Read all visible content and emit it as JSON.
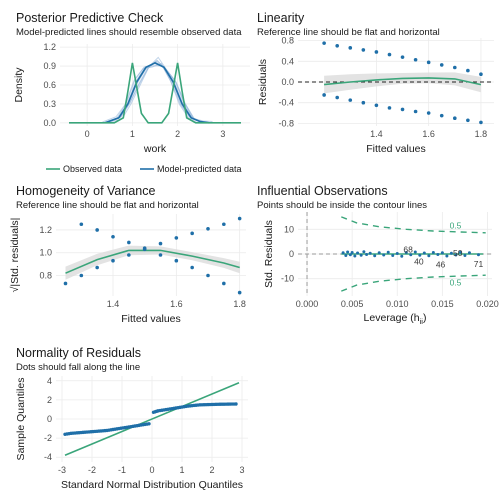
{
  "colors": {
    "blue": "#1f6fa8",
    "green": "#3aa57a",
    "band": "#dcdcdc",
    "grid": "#ebebeb",
    "blue_light": "#8fb3d9"
  },
  "chart_data": [
    {
      "id": "ppc",
      "type": "line",
      "title": "Posterior Predictive Check",
      "subtitle": "Model-predicted lines should resemble observed data",
      "xlabel": "work",
      "ylabel": "Density",
      "xlim": [
        -0.6,
        3.6
      ],
      "ylim": [
        -0.05,
        1.25
      ],
      "xticks": [
        0,
        1,
        2,
        3
      ],
      "yticks": [
        0.0,
        0.3,
        0.6,
        0.9,
        1.2
      ],
      "ytick_labels": [
        "0.0",
        "0.3",
        "0.6",
        "0.9",
        "1.2"
      ],
      "legend": [
        "Observed data",
        "Model-predicted data"
      ],
      "legend_position": "bottom",
      "series": [
        {
          "name": "Observed data",
          "x": [
            -0.4,
            0.6,
            0.8,
            0.9,
            1.0,
            1.1,
            1.2,
            1.35,
            1.5,
            1.65,
            1.8,
            1.9,
            2.0,
            2.1,
            2.2,
            2.4,
            3.4
          ],
          "y": [
            0.0,
            0.0,
            0.08,
            0.5,
            0.95,
            0.55,
            0.15,
            0.0,
            0.0,
            0.0,
            0.15,
            0.55,
            0.95,
            0.5,
            0.08,
            0.0,
            0.0
          ]
        },
        {
          "name": "Model-predicted data",
          "x": [
            0.4,
            0.7,
            0.9,
            1.1,
            1.3,
            1.5,
            1.7,
            1.9,
            2.1,
            2.3,
            2.5,
            2.7
          ],
          "y": [
            0.0,
            0.08,
            0.3,
            0.65,
            0.88,
            0.95,
            0.88,
            0.65,
            0.3,
            0.08,
            0.02,
            0.0
          ]
        }
      ]
    },
    {
      "id": "linearity",
      "type": "scatter",
      "title": "Linearity",
      "subtitle": "Reference line should be flat and horizontal",
      "xlabel": "Fitted values",
      "ylabel": "Residuals",
      "xlim": [
        1.1,
        1.85
      ],
      "ylim": [
        -0.85,
        0.85
      ],
      "xticks": [
        1.4,
        1.6,
        1.8
      ],
      "yticks": [
        -0.8,
        -0.4,
        0.0,
        0.4,
        0.8
      ],
      "ytick_labels": [
        "-0.8",
        "-0.4",
        "0.0",
        "0.4",
        "0.8"
      ],
      "upper_points": {
        "x": [
          1.2,
          1.25,
          1.3,
          1.35,
          1.4,
          1.45,
          1.5,
          1.55,
          1.6,
          1.65,
          1.7,
          1.75,
          1.8
        ],
        "y": [
          0.75,
          0.7,
          0.66,
          0.62,
          0.58,
          0.53,
          0.48,
          0.43,
          0.38,
          0.33,
          0.28,
          0.22,
          0.15
        ]
      },
      "lower_points": {
        "x": [
          1.2,
          1.25,
          1.3,
          1.35,
          1.4,
          1.45,
          1.5,
          1.55,
          1.6,
          1.65,
          1.7,
          1.75,
          1.8
        ],
        "y": [
          -0.25,
          -0.3,
          -0.35,
          -0.4,
          -0.45,
          -0.5,
          -0.53,
          -0.57,
          -0.6,
          -0.65,
          -0.7,
          -0.74,
          -0.78
        ]
      },
      "smooth": {
        "x": [
          1.2,
          1.3,
          1.4,
          1.5,
          1.6,
          1.7,
          1.8
        ],
        "y": [
          -0.05,
          0.0,
          0.04,
          0.07,
          0.08,
          0.06,
          -0.05
        ]
      },
      "reference_y": 0.0
    },
    {
      "id": "homogeneity",
      "type": "scatter",
      "title": "Homogeneity of Variance",
      "subtitle": "Reference line should be flat and horizontal",
      "xlabel": "Fitted values",
      "ylabel": "√|Std. residuals|",
      "xlim": [
        1.22,
        1.82
      ],
      "ylim": [
        0.62,
        1.34
      ],
      "xticks": [
        1.4,
        1.6,
        1.8
      ],
      "yticks": [
        0.8,
        1.0,
        1.2
      ],
      "ytick_labels": [
        "0.8",
        "1.0",
        "1.2"
      ],
      "falling_points": {
        "x": [
          1.3,
          1.35,
          1.4,
          1.45,
          1.5,
          1.55,
          1.6,
          1.65,
          1.7,
          1.75,
          1.8
        ],
        "y": [
          1.25,
          1.2,
          1.14,
          1.09,
          1.04,
          0.98,
          0.93,
          0.87,
          0.8,
          0.73,
          0.65
        ]
      },
      "rising_points": {
        "x": [
          1.25,
          1.3,
          1.35,
          1.4,
          1.45,
          1.5,
          1.55,
          1.6,
          1.65,
          1.7,
          1.75,
          1.8
        ],
        "y": [
          0.73,
          0.8,
          0.87,
          0.93,
          0.98,
          1.03,
          1.08,
          1.13,
          1.17,
          1.21,
          1.25,
          1.3
        ]
      },
      "smooth": {
        "x": [
          1.25,
          1.35,
          1.45,
          1.55,
          1.65,
          1.75,
          1.8
        ],
        "y": [
          0.82,
          0.94,
          1.02,
          1.02,
          0.97,
          0.91,
          0.87
        ]
      }
    },
    {
      "id": "influential",
      "type": "scatter",
      "title": "Influential Observations",
      "subtitle": "Points should be inside the contour lines",
      "xlabel": "Leverage (h",
      "xlabel_sub": "ii",
      "xlabel_end": ")",
      "ylabel": "Std. Residuals",
      "xlim": [
        -0.001,
        0.0205
      ],
      "ylim": [
        -17,
        17
      ],
      "xticks": [
        0.0,
        0.005,
        0.01,
        0.015,
        0.02
      ],
      "xtick_labels": [
        "0.000",
        "0.005",
        "0.010",
        "0.015",
        "0.020"
      ],
      "yticks": [
        -10,
        0,
        10
      ],
      "ytick_labels": [
        "-10",
        "0",
        "10"
      ],
      "points": {
        "x": [
          0.004,
          0.0043,
          0.0045,
          0.0048,
          0.005,
          0.0053,
          0.0056,
          0.006,
          0.0063,
          0.0066,
          0.007,
          0.0075,
          0.008,
          0.0085,
          0.009,
          0.0095,
          0.01,
          0.0105,
          0.011,
          0.0115,
          0.012,
          0.0125,
          0.013,
          0.0135,
          0.014,
          0.0145,
          0.015,
          0.0155,
          0.016,
          0.0165,
          0.017,
          0.0175,
          0.018,
          0.019
        ],
        "y": [
          0.5,
          -0.6,
          0.8,
          -0.3,
          0.6,
          -0.8,
          0.4,
          -0.5,
          0.9,
          -0.2,
          0.3,
          -0.7,
          0.5,
          -0.4,
          0.7,
          -0.6,
          0.2,
          -0.9,
          0.6,
          -0.3,
          0.8,
          -0.5,
          0.4,
          -0.7,
          0.6,
          -0.2,
          0.5,
          -0.8,
          0.3,
          -0.4,
          0.7,
          -0.6,
          0.5,
          -0.3
        ]
      },
      "labels": [
        {
          "text": "68",
          "x": 0.0112,
          "y": 1.8
        },
        {
          "text": "40",
          "x": 0.0124,
          "y": -3.0
        },
        {
          "text": "46",
          "x": 0.0148,
          "y": -4.2
        },
        {
          "text": "50",
          "x": 0.0167,
          "y": 0.5
        },
        {
          "text": "71",
          "x": 0.019,
          "y": -4.0
        }
      ],
      "contour_labels": [
        {
          "text": "0.5",
          "x": 0.0158,
          "y": 11.5
        },
        {
          "text": "0.5",
          "x": 0.0158,
          "y": -11.5
        }
      ],
      "contour_upper": {
        "x": [
          0.0038,
          0.0055,
          0.008,
          0.011,
          0.014,
          0.017,
          0.0198
        ],
        "y": [
          15.0,
          12.6,
          11.0,
          10.0,
          9.3,
          8.9,
          8.6
        ]
      },
      "contour_lower": {
        "x": [
          0.0038,
          0.0055,
          0.008,
          0.011,
          0.014,
          0.017,
          0.0198
        ],
        "y": [
          -15.0,
          -12.6,
          -11.0,
          -10.0,
          -9.3,
          -8.9,
          -8.6
        ]
      },
      "vline_x": 0.0,
      "hline_y": 0.0
    },
    {
      "id": "qq",
      "type": "scatter",
      "title": "Normality of Residuals",
      "subtitle": "Dots should fall along the line",
      "xlabel": "Standard Normal Distribution Quantiles",
      "ylabel": "Sample Quantiles",
      "xlim": [
        -3.2,
        3.2
      ],
      "ylim": [
        -4.5,
        4.5
      ],
      "xticks": [
        -3,
        -2,
        -1,
        0,
        1,
        2,
        3
      ],
      "xtick_labels": [
        "-3",
        "-2",
        "-1",
        "0",
        "1",
        "2",
        "3"
      ],
      "yticks": [
        -4,
        -2,
        0,
        2,
        4
      ],
      "ytick_labels": [
        "-4",
        "-2",
        "0",
        "2",
        "4"
      ],
      "line": {
        "x": [
          -2.9,
          2.9
        ],
        "y": [
          -3.8,
          3.8
        ]
      },
      "low_points": {
        "x": [
          -2.9,
          -2.7,
          -2.5,
          -2.3,
          -2.1,
          -1.9,
          -1.7,
          -1.5,
          -1.3,
          -1.1,
          -0.9,
          -0.7,
          -0.5,
          -0.3,
          -0.1
        ],
        "y": [
          -1.6,
          -1.5,
          -1.45,
          -1.4,
          -1.35,
          -1.3,
          -1.25,
          -1.2,
          -1.1,
          -1.0,
          -0.9,
          -0.8,
          -0.7,
          -0.6,
          -0.5
        ]
      },
      "high_points": {
        "x": [
          0.05,
          0.2,
          0.4,
          0.6,
          0.8,
          1.0,
          1.2,
          1.4,
          1.6,
          1.8,
          2.0,
          2.2,
          2.4,
          2.6,
          2.8
        ],
        "y": [
          0.7,
          0.85,
          0.95,
          1.05,
          1.15,
          1.25,
          1.35,
          1.42,
          1.48,
          1.5,
          1.52,
          1.54,
          1.55,
          1.56,
          1.57
        ]
      }
    }
  ]
}
